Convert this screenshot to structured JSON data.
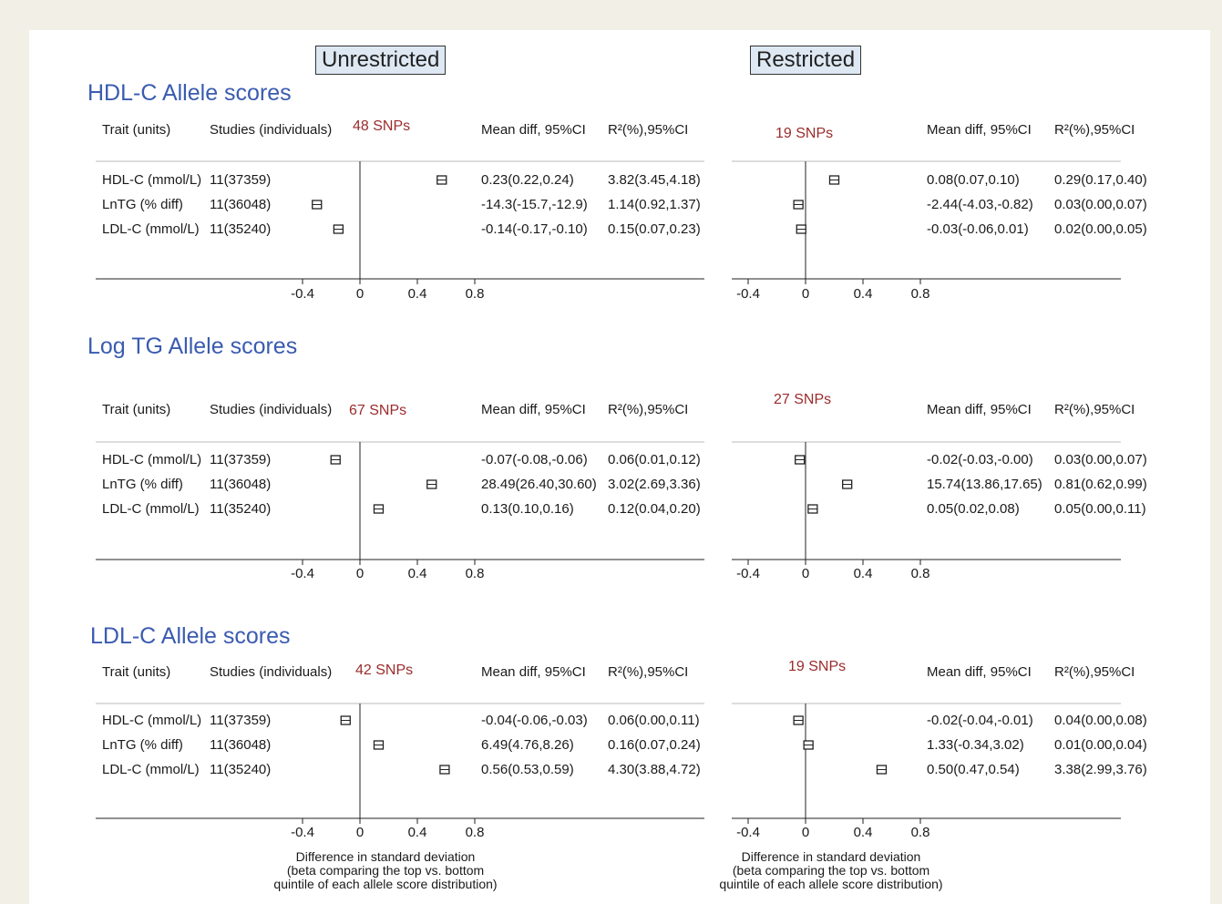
{
  "headers": {
    "left": "Unrestricted",
    "right": "Restricted"
  },
  "columns": {
    "trait": "Trait (units)",
    "studies": "Studies (individuals)",
    "mean": "Mean diff, 95%CI",
    "r2": "R²(%),95%CI"
  },
  "axis_note": "Difference in standard deviation\n(beta comparing the top vs. bottom\nquintile of each allele score distribution)",
  "chart_data": [
    {
      "type": "forest",
      "title": "HDL-C Allele scores",
      "xlim": [
        -0.4,
        0.8
      ],
      "xticks": [
        "-0.4",
        "0",
        "0.4",
        "0.8"
      ],
      "panels": [
        {
          "name": "Unrestricted",
          "snps": "48 SNPs",
          "rows": [
            {
              "trait": "HDL-C (mmol/L)",
              "studies": "11(37359)",
              "value": 0.57,
              "mean_text": "0.23(0.22,0.24)",
              "r2_text": "3.82(3.45,4.18)"
            },
            {
              "trait": "LnTG (% diff)",
              "studies": "11(36048)",
              "value": -0.3,
              "mean_text": "-14.3(-15.7,-12.9)",
              "r2_text": "1.14(0.92,1.37)"
            },
            {
              "trait": "LDL-C (mmol/L)",
              "studies": "11(35240)",
              "value": -0.15,
              "mean_text": "-0.14(-0.17,-0.10)",
              "r2_text": "0.15(0.07,0.23)"
            }
          ]
        },
        {
          "name": "Restricted",
          "snps": "19 SNPs",
          "rows": [
            {
              "trait": "HDL-C (mmol/L)",
              "studies": "11(37359)",
              "value": 0.2,
              "mean_text": "0.08(0.07,0.10)",
              "r2_text": "0.29(0.17,0.40)"
            },
            {
              "trait": "LnTG (% diff)",
              "studies": "11(36048)",
              "value": -0.05,
              "mean_text": "-2.44(-4.03,-0.82)",
              "r2_text": "0.03(0.00,0.07)"
            },
            {
              "trait": "LDL-C (mmol/L)",
              "studies": "11(35240)",
              "value": -0.03,
              "mean_text": "-0.03(-0.06,0.01)",
              "r2_text": "0.02(0.00,0.05)"
            }
          ]
        }
      ]
    },
    {
      "type": "forest",
      "title": "Log TG Allele scores",
      "xlim": [
        -0.4,
        0.8
      ],
      "xticks": [
        "-0.4",
        "0",
        "0.4",
        "0.8"
      ],
      "panels": [
        {
          "name": "Unrestricted",
          "snps": "67 SNPs",
          "rows": [
            {
              "trait": "HDL-C (mmol/L)",
              "studies": "11(37359)",
              "value": -0.17,
              "mean_text": "-0.07(-0.08,-0.06)",
              "r2_text": "0.06(0.01,0.12)"
            },
            {
              "trait": "LnTG (% diff)",
              "studies": "11(36048)",
              "value": 0.5,
              "mean_text": "28.49(26.40,30.60)",
              "r2_text": "3.02(2.69,3.36)"
            },
            {
              "trait": "LDL-C (mmol/L)",
              "studies": "11(35240)",
              "value": 0.13,
              "mean_text": "0.13(0.10,0.16)",
              "r2_text": "0.12(0.04,0.20)"
            }
          ]
        },
        {
          "name": "Restricted",
          "snps": "27 SNPs",
          "rows": [
            {
              "trait": "HDL-C (mmol/L)",
              "studies": "11(37359)",
              "value": -0.04,
              "mean_text": "-0.02(-0.03,-0.00)",
              "r2_text": "0.03(0.00,0.07)"
            },
            {
              "trait": "LnTG (% diff)",
              "studies": "11(36048)",
              "value": 0.29,
              "mean_text": "15.74(13.86,17.65)",
              "r2_text": "0.81(0.62,0.99)"
            },
            {
              "trait": "LDL-C (mmol/L)",
              "studies": "11(35240)",
              "value": 0.05,
              "mean_text": "0.05(0.02,0.08)",
              "r2_text": "0.05(0.00,0.11)"
            }
          ]
        }
      ]
    },
    {
      "type": "forest",
      "title": "LDL-C Allele scores",
      "xlim": [
        -0.4,
        0.8
      ],
      "xticks": [
        "-0.4",
        "0",
        "0.4",
        "0.8"
      ],
      "panels": [
        {
          "name": "Unrestricted",
          "snps": "42 SNPs",
          "rows": [
            {
              "trait": "HDL-C (mmol/L)",
              "studies": "11(37359)",
              "value": -0.1,
              "mean_text": "-0.04(-0.06,-0.03)",
              "r2_text": "0.06(0.00,0.11)"
            },
            {
              "trait": "LnTG (% diff)",
              "studies": "11(36048)",
              "value": 0.13,
              "mean_text": "6.49(4.76,8.26)",
              "r2_text": "0.16(0.07,0.24)"
            },
            {
              "trait": "LDL-C (mmol/L)",
              "studies": "11(35240)",
              "value": 0.59,
              "mean_text": "0.56(0.53,0.59)",
              "r2_text": "4.30(3.88,4.72)"
            }
          ]
        },
        {
          "name": "Restricted",
          "snps": "19 SNPs",
          "rows": [
            {
              "trait": "HDL-C (mmol/L)",
              "studies": "11(37359)",
              "value": -0.05,
              "mean_text": "-0.02(-0.04,-0.01)",
              "r2_text": "0.04(0.00,0.08)"
            },
            {
              "trait": "LnTG (% diff)",
              "studies": "11(36048)",
              "value": 0.02,
              "mean_text": "1.33(-0.34,3.02)",
              "r2_text": "0.01(0.00,0.04)"
            },
            {
              "trait": "LDL-C (mmol/L)",
              "studies": "11(35240)",
              "value": 0.53,
              "mean_text": "0.50(0.47,0.54)",
              "r2_text": "3.38(2.99,3.76)"
            }
          ]
        }
      ]
    }
  ]
}
